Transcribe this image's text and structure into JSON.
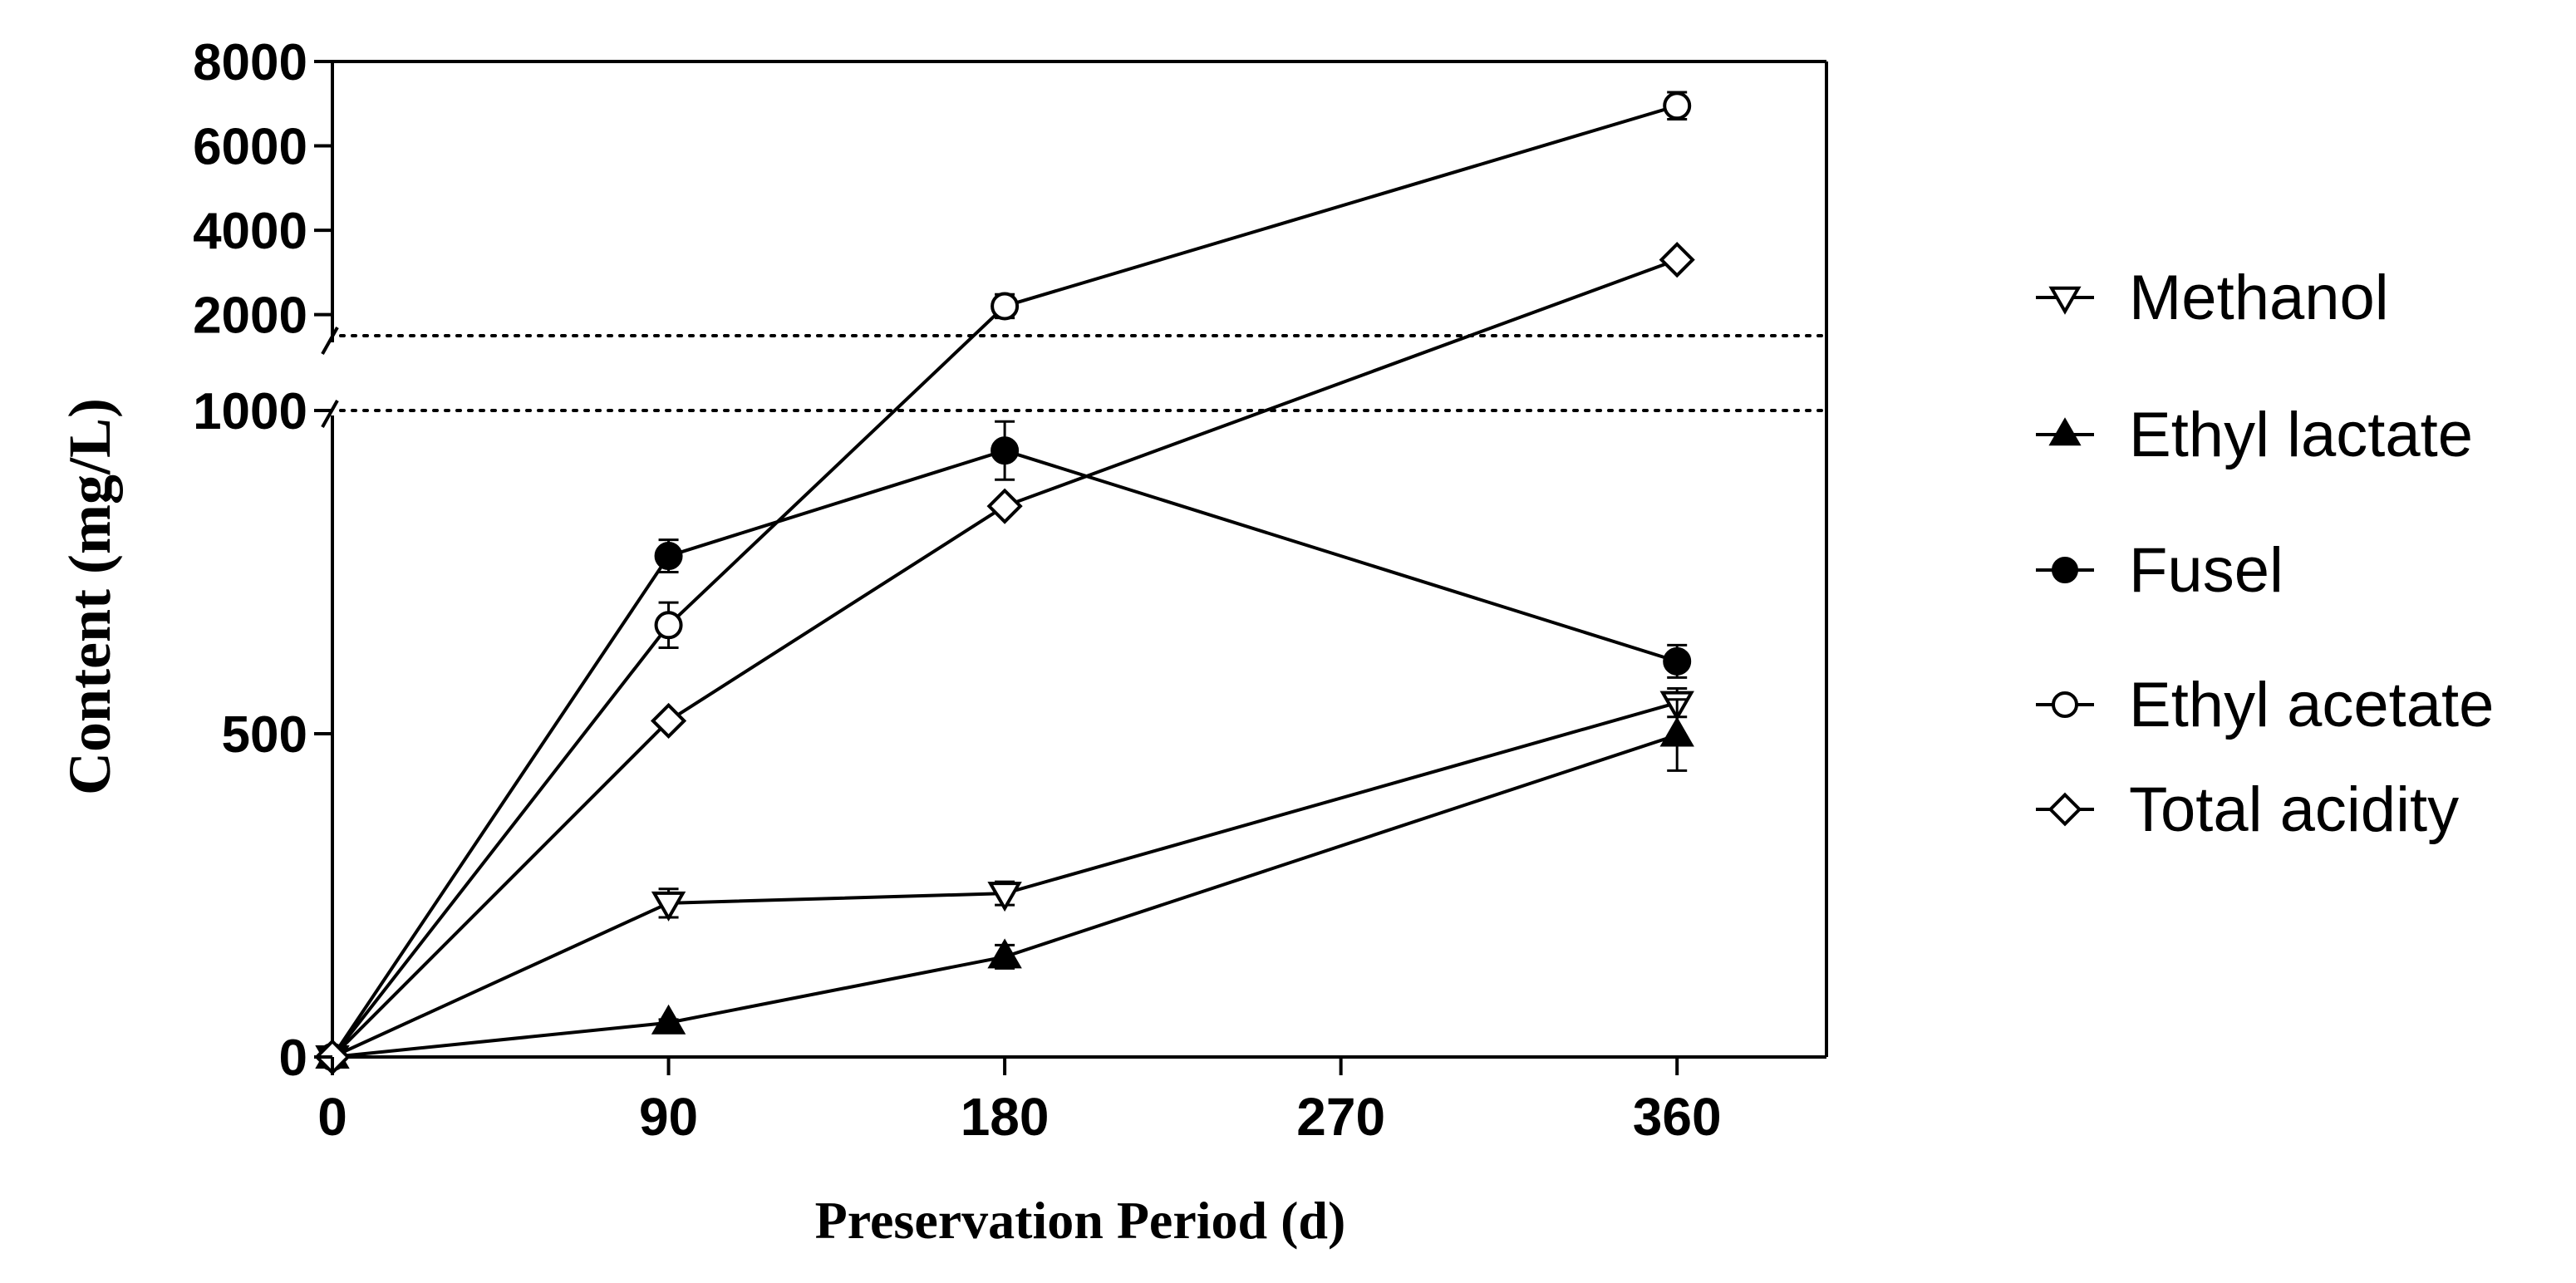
{
  "chart_data": {
    "type": "line",
    "title": "",
    "xlabel": "Preservation Period (d)",
    "ylabel": "Content (mg/L)",
    "x": [
      0,
      90,
      180,
      360
    ],
    "x_ticks": [
      0,
      90,
      180,
      270,
      360
    ],
    "xlim": [
      0,
      400
    ],
    "y_axis_break": {
      "lower_range": [
        0,
        1000
      ],
      "upper_range": [
        1500,
        8000
      ],
      "lower_ticks": [
        0,
        500,
        1000
      ],
      "upper_ticks": [
        2000,
        4000,
        6000,
        8000
      ]
    },
    "legend_position": "right",
    "series": [
      {
        "name": "Methanol",
        "marker": "triangle-down-open",
        "values": [
          0,
          238,
          253,
          548
        ],
        "errors": [
          0,
          22,
          18,
          22
        ]
      },
      {
        "name": "Ethyl lactate",
        "marker": "triangle-up-filled",
        "values": [
          0,
          53,
          155,
          498
        ],
        "errors": [
          0,
          5,
          18,
          55
        ]
      },
      {
        "name": "Fusel",
        "marker": "circle-filled",
        "values": [
          0,
          775,
          938,
          612
        ],
        "errors": [
          0,
          25,
          45,
          25
        ]
      },
      {
        "name": "Ethyl acetate",
        "marker": "circle-open",
        "values": [
          0,
          668,
          2200,
          6950
        ],
        "errors": [
          0,
          35,
          280,
          320
        ]
      },
      {
        "name": "Total acidity",
        "marker": "diamond-open",
        "values": [
          0,
          520,
          852,
          3300
        ],
        "errors": [
          0,
          8,
          10,
          60
        ]
      }
    ]
  }
}
